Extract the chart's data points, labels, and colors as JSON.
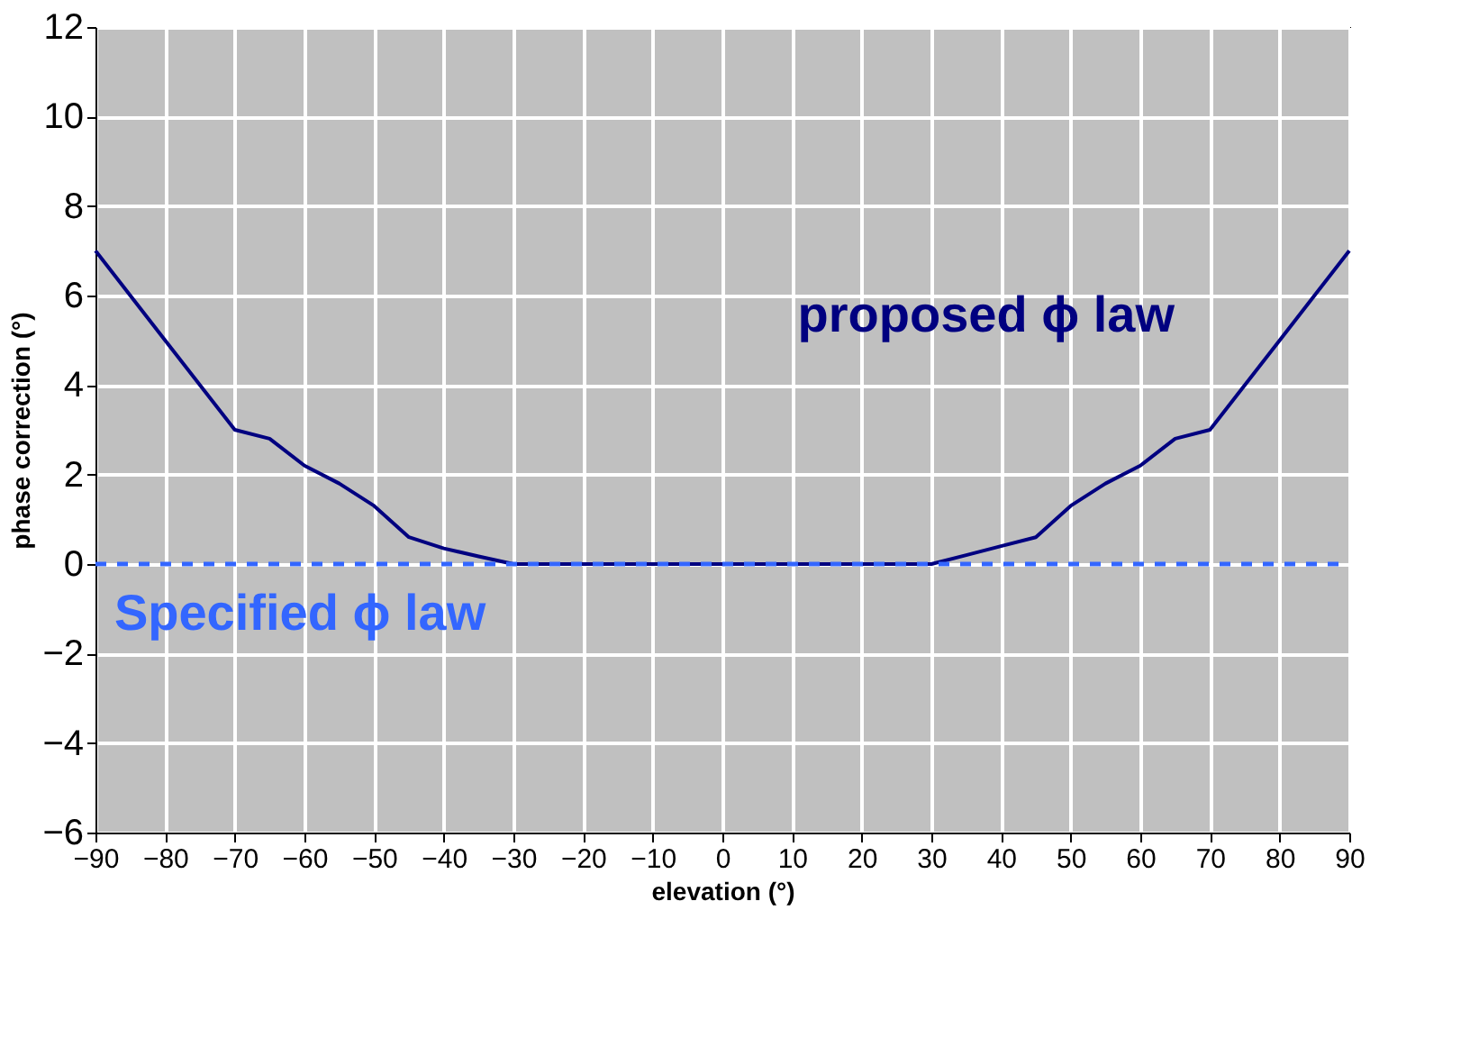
{
  "chart_data": {
    "type": "line",
    "xlabel": "elevation (°)",
    "ylabel": "phase correction (°)",
    "xlim": [
      -90,
      90
    ],
    "xticks": [
      -90,
      -80,
      -70,
      -60,
      -50,
      -40,
      -30,
      -20,
      -10,
      0,
      10,
      20,
      30,
      40,
      50,
      60,
      70,
      80,
      90
    ],
    "ylim": [
      -6,
      12
    ],
    "yticks": [
      -6,
      -4,
      -2,
      0,
      2,
      4,
      6,
      8,
      10,
      12
    ],
    "grid": true,
    "marker": "none",
    "series": [
      {
        "name": "proposed ϕ law",
        "color": "#000080",
        "line_style": "solid",
        "x": [
          -90,
          -80,
          -70,
          -65,
          -60,
          -55,
          -50,
          -45,
          -40,
          -35,
          -30,
          30,
          35,
          40,
          45,
          50,
          55,
          60,
          65,
          70,
          80,
          90
        ],
        "values": [
          7.0,
          5.0,
          3.0,
          2.8,
          2.2,
          1.8,
          1.3,
          0.6,
          0.35,
          0.17,
          0,
          0,
          0.2,
          0.4,
          0.6,
          1.3,
          1.8,
          2.2,
          2.8,
          3.0,
          5.0,
          7.0
        ]
      },
      {
        "name": "Specified ϕ law",
        "color": "#3366ff",
        "line_style": "dashed",
        "x": [
          -90,
          90
        ],
        "values": [
          0,
          0
        ]
      }
    ]
  }
}
